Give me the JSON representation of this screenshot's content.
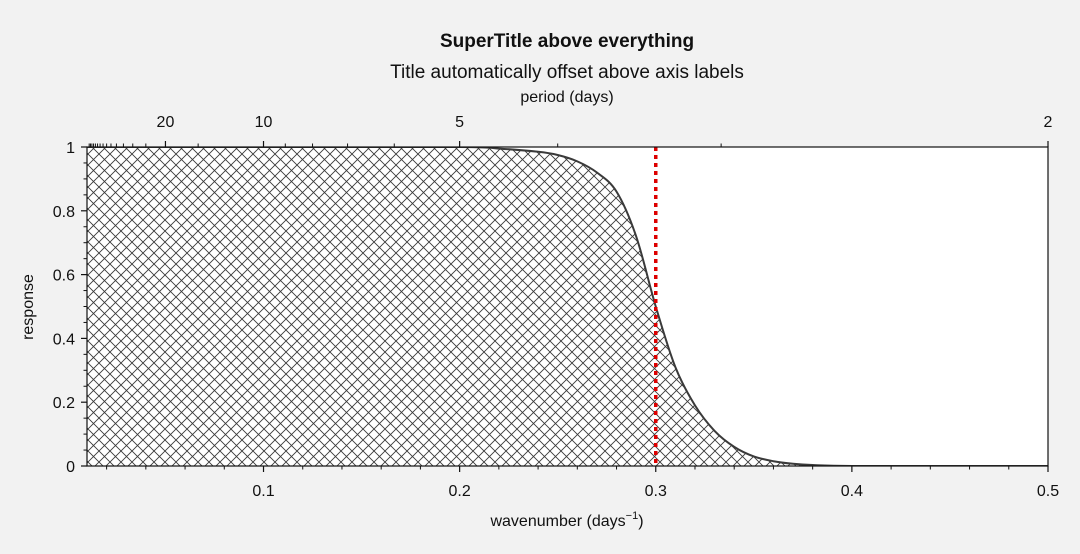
{
  "figure": {
    "suptitle": "SuperTitle above everything",
    "background": "#f2f2f2"
  },
  "chart_data": {
    "type": "area",
    "title": "Title automatically offset above axis labels",
    "xlabel": "wavenumber (days",
    "xlabel_sup": "−1",
    "xlabel_suffix": ")",
    "ylabel": "response",
    "xlim": [
      0.01,
      0.5
    ],
    "ylim": [
      0,
      1
    ],
    "x_ticks": [
      0.1,
      0.2,
      0.3,
      0.4,
      0.5
    ],
    "x_tick_labels": [
      "0.1",
      "0.2",
      "0.3",
      "0.4",
      "0.5"
    ],
    "y_ticks": [
      0,
      0.2,
      0.4,
      0.6,
      0.8,
      1
    ],
    "y_tick_labels": [
      "0",
      "0.2",
      "0.4",
      "0.6",
      "0.8",
      "1"
    ],
    "secondary_x": {
      "label": "period (days)",
      "ticks": [
        20,
        10,
        5,
        2
      ],
      "tick_labels": [
        "20",
        "10",
        "5",
        "2"
      ],
      "transform": "reciprocal"
    },
    "series": [
      {
        "x": [
          0.01,
          0.1,
          0.2,
          0.22,
          0.24,
          0.25,
          0.26,
          0.27,
          0.28,
          0.29,
          0.3,
          0.31,
          0.32,
          0.33,
          0.34,
          0.35,
          0.36,
          0.37,
          0.38,
          0.4,
          0.45,
          0.5
        ],
        "values": [
          1.0,
          1.0,
          1.0,
          0.995,
          0.985,
          0.975,
          0.955,
          0.92,
          0.86,
          0.72,
          0.5,
          0.31,
          0.19,
          0.11,
          0.06,
          0.03,
          0.015,
          0.007,
          0.003,
          0.0,
          0.0,
          0.0
        ],
        "fill": "hatch-crosshatch",
        "color": "#3a3a3a"
      }
    ],
    "annotations": [
      {
        "type": "vline",
        "x": 0.3,
        "style": "dotted",
        "color": "#dd0000"
      }
    ],
    "grid": false
  }
}
